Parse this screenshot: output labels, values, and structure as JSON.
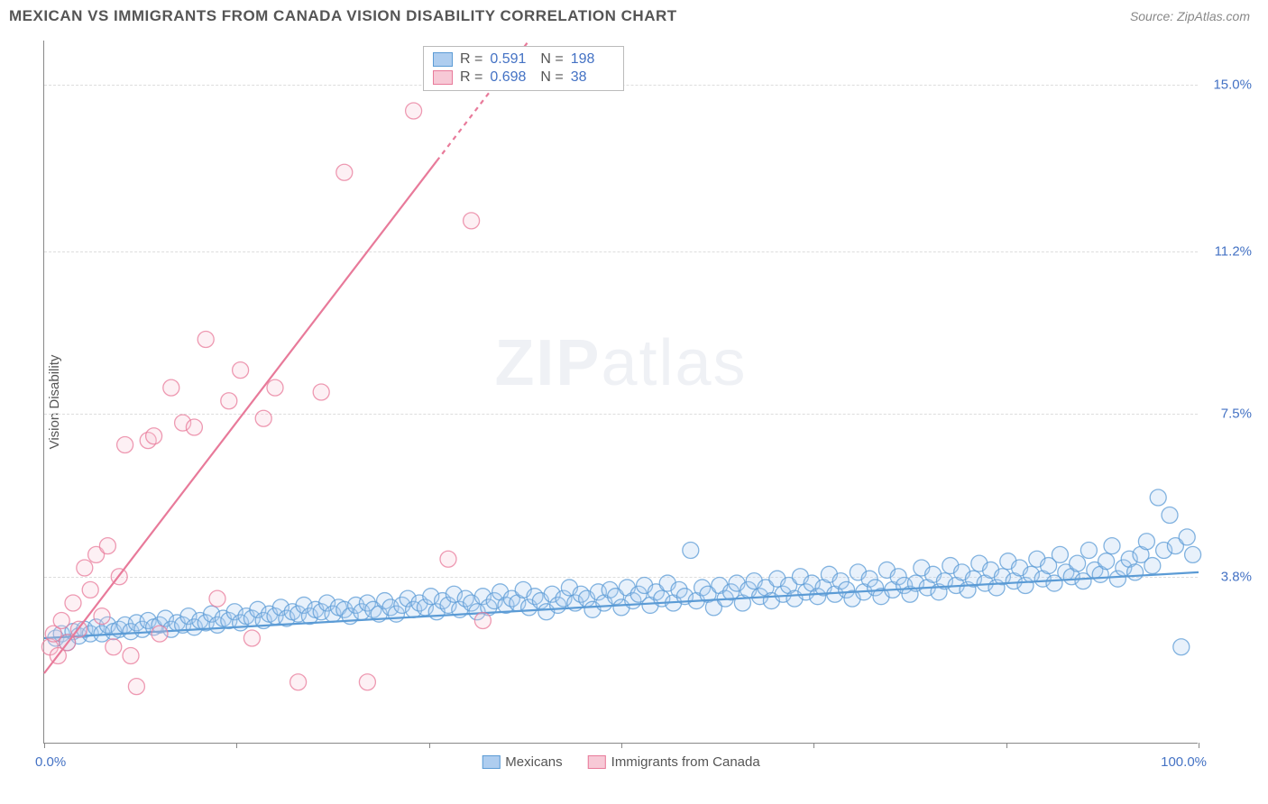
{
  "header": {
    "title": "MEXICAN VS IMMIGRANTS FROM CANADA VISION DISABILITY CORRELATION CHART",
    "source": "Source: ZipAtlas.com"
  },
  "chart": {
    "type": "scatter",
    "ylabel": "Vision Disability",
    "xlim": [
      0,
      100
    ],
    "ylim": [
      0,
      16
    ],
    "xtick_positions": [
      0,
      16.67,
      33.33,
      50,
      66.67,
      83.33,
      100
    ],
    "xaxis_label_left": "0.0%",
    "xaxis_label_right": "100.0%",
    "ytick_labels": [
      {
        "pos": 3.8,
        "text": "3.8%"
      },
      {
        "pos": 7.5,
        "text": "7.5%"
      },
      {
        "pos": 11.2,
        "text": "11.2%"
      },
      {
        "pos": 15.0,
        "text": "15.0%"
      }
    ],
    "grid_color": "#dddddd",
    "background_color": "#ffffff",
    "axis_color": "#888888",
    "label_color": "#4472c4",
    "label_fontsize": 15,
    "marker_radius": 9,
    "marker_fill_opacity": 0.28,
    "marker_stroke_opacity": 0.75,
    "marker_stroke_width": 1.3,
    "line_width": 2.2
  },
  "stats_box": {
    "rows": [
      {
        "series": 0,
        "r_label": "R =",
        "r": "0.591",
        "n_label": "N =",
        "n": "198"
      },
      {
        "series": 1,
        "r_label": "R =",
        "r": "0.698",
        "n_label": "N =",
        "n": "38"
      }
    ]
  },
  "legend": {
    "items": [
      {
        "series": 0,
        "label": "Mexicans"
      },
      {
        "series": 1,
        "label": "Immigrants from Canada"
      }
    ]
  },
  "series": [
    {
      "name": "Mexicans",
      "color": "#5b9bd5",
      "fill": "#aecdef",
      "trend": {
        "x1": 0,
        "y1": 2.4,
        "x2": 100,
        "y2": 3.9,
        "dash": false
      },
      "points": [
        [
          1,
          2.4
        ],
        [
          1.5,
          2.5
        ],
        [
          2,
          2.3
        ],
        [
          2.5,
          2.55
        ],
        [
          3,
          2.45
        ],
        [
          3.5,
          2.6
        ],
        [
          4,
          2.5
        ],
        [
          4.5,
          2.65
        ],
        [
          5,
          2.5
        ],
        [
          5.5,
          2.7
        ],
        [
          6,
          2.55
        ],
        [
          6.5,
          2.6
        ],
        [
          7,
          2.7
        ],
        [
          7.5,
          2.55
        ],
        [
          8,
          2.75
        ],
        [
          8.5,
          2.6
        ],
        [
          9,
          2.8
        ],
        [
          9.5,
          2.65
        ],
        [
          10,
          2.7
        ],
        [
          10.5,
          2.85
        ],
        [
          11,
          2.6
        ],
        [
          11.5,
          2.75
        ],
        [
          12,
          2.7
        ],
        [
          12.5,
          2.9
        ],
        [
          13,
          2.65
        ],
        [
          13.5,
          2.8
        ],
        [
          14,
          2.75
        ],
        [
          14.5,
          2.95
        ],
        [
          15,
          2.7
        ],
        [
          15.5,
          2.85
        ],
        [
          16,
          2.8
        ],
        [
          16.5,
          3.0
        ],
        [
          17,
          2.75
        ],
        [
          17.5,
          2.9
        ],
        [
          18,
          2.85
        ],
        [
          18.5,
          3.05
        ],
        [
          19,
          2.8
        ],
        [
          19.5,
          2.95
        ],
        [
          20,
          2.9
        ],
        [
          20.5,
          3.1
        ],
        [
          21,
          2.85
        ],
        [
          21.5,
          3.0
        ],
        [
          22,
          2.95
        ],
        [
          22.5,
          3.15
        ],
        [
          23,
          2.9
        ],
        [
          23.5,
          3.05
        ],
        [
          24,
          3.0
        ],
        [
          24.5,
          3.2
        ],
        [
          25,
          2.95
        ],
        [
          25.5,
          3.1
        ],
        [
          26,
          3.05
        ],
        [
          26.5,
          2.9
        ],
        [
          27,
          3.15
        ],
        [
          27.5,
          3.0
        ],
        [
          28,
          3.2
        ],
        [
          28.5,
          3.05
        ],
        [
          29,
          2.95
        ],
        [
          29.5,
          3.25
        ],
        [
          30,
          3.1
        ],
        [
          30.5,
          2.95
        ],
        [
          31,
          3.15
        ],
        [
          31.5,
          3.3
        ],
        [
          32,
          3.05
        ],
        [
          32.5,
          3.2
        ],
        [
          33,
          3.1
        ],
        [
          33.5,
          3.35
        ],
        [
          34,
          3.0
        ],
        [
          34.5,
          3.25
        ],
        [
          35,
          3.15
        ],
        [
          35.5,
          3.4
        ],
        [
          36,
          3.05
        ],
        [
          36.5,
          3.3
        ],
        [
          37,
          3.2
        ],
        [
          37.5,
          3.0
        ],
        [
          38,
          3.35
        ],
        [
          38.5,
          3.1
        ],
        [
          39,
          3.25
        ],
        [
          39.5,
          3.45
        ],
        [
          40,
          3.15
        ],
        [
          40.5,
          3.3
        ],
        [
          41,
          3.2
        ],
        [
          41.5,
          3.5
        ],
        [
          42,
          3.1
        ],
        [
          42.5,
          3.35
        ],
        [
          43,
          3.25
        ],
        [
          43.5,
          3.0
        ],
        [
          44,
          3.4
        ],
        [
          44.5,
          3.15
        ],
        [
          45,
          3.3
        ],
        [
          45.5,
          3.55
        ],
        [
          46,
          3.2
        ],
        [
          46.5,
          3.4
        ],
        [
          47,
          3.3
        ],
        [
          47.5,
          3.05
        ],
        [
          48,
          3.45
        ],
        [
          48.5,
          3.2
        ],
        [
          49,
          3.5
        ],
        [
          49.5,
          3.35
        ],
        [
          50,
          3.1
        ],
        [
          50.5,
          3.55
        ],
        [
          51,
          3.25
        ],
        [
          51.5,
          3.4
        ],
        [
          52,
          3.6
        ],
        [
          52.5,
          3.15
        ],
        [
          53,
          3.45
        ],
        [
          53.5,
          3.3
        ],
        [
          54,
          3.65
        ],
        [
          54.5,
          3.2
        ],
        [
          55,
          3.5
        ],
        [
          55.5,
          3.35
        ],
        [
          56,
          4.4
        ],
        [
          56.5,
          3.25
        ],
        [
          57,
          3.55
        ],
        [
          57.5,
          3.4
        ],
        [
          58,
          3.1
        ],
        [
          58.5,
          3.6
        ],
        [
          59,
          3.3
        ],
        [
          59.5,
          3.45
        ],
        [
          60,
          3.65
        ],
        [
          60.5,
          3.2
        ],
        [
          61,
          3.5
        ],
        [
          61.5,
          3.7
        ],
        [
          62,
          3.35
        ],
        [
          62.5,
          3.55
        ],
        [
          63,
          3.25
        ],
        [
          63.5,
          3.75
        ],
        [
          64,
          3.4
        ],
        [
          64.5,
          3.6
        ],
        [
          65,
          3.3
        ],
        [
          65.5,
          3.8
        ],
        [
          66,
          3.45
        ],
        [
          66.5,
          3.65
        ],
        [
          67,
          3.35
        ],
        [
          67.5,
          3.55
        ],
        [
          68,
          3.85
        ],
        [
          68.5,
          3.4
        ],
        [
          69,
          3.7
        ],
        [
          69.5,
          3.5
        ],
        [
          70,
          3.3
        ],
        [
          70.5,
          3.9
        ],
        [
          71,
          3.45
        ],
        [
          71.5,
          3.75
        ],
        [
          72,
          3.55
        ],
        [
          72.5,
          3.35
        ],
        [
          73,
          3.95
        ],
        [
          73.5,
          3.5
        ],
        [
          74,
          3.8
        ],
        [
          74.5,
          3.6
        ],
        [
          75,
          3.4
        ],
        [
          75.5,
          3.65
        ],
        [
          76,
          4.0
        ],
        [
          76.5,
          3.55
        ],
        [
          77,
          3.85
        ],
        [
          77.5,
          3.45
        ],
        [
          78,
          3.7
        ],
        [
          78.5,
          4.05
        ],
        [
          79,
          3.6
        ],
        [
          79.5,
          3.9
        ],
        [
          80,
          3.5
        ],
        [
          80.5,
          3.75
        ],
        [
          81,
          4.1
        ],
        [
          81.5,
          3.65
        ],
        [
          82,
          3.95
        ],
        [
          82.5,
          3.55
        ],
        [
          83,
          3.8
        ],
        [
          83.5,
          4.15
        ],
        [
          84,
          3.7
        ],
        [
          84.5,
          4.0
        ],
        [
          85,
          3.6
        ],
        [
          85.5,
          3.85
        ],
        [
          86,
          4.2
        ],
        [
          86.5,
          3.75
        ],
        [
          87,
          4.05
        ],
        [
          87.5,
          3.65
        ],
        [
          88,
          4.3
        ],
        [
          88.5,
          3.9
        ],
        [
          89,
          3.8
        ],
        [
          89.5,
          4.1
        ],
        [
          90,
          3.7
        ],
        [
          90.5,
          4.4
        ],
        [
          91,
          3.95
        ],
        [
          91.5,
          3.85
        ],
        [
          92,
          4.15
        ],
        [
          92.5,
          4.5
        ],
        [
          93,
          3.75
        ],
        [
          93.5,
          4.0
        ],
        [
          94,
          4.2
        ],
        [
          94.5,
          3.9
        ],
        [
          95,
          4.3
        ],
        [
          95.5,
          4.6
        ],
        [
          96,
          4.05
        ],
        [
          96.5,
          5.6
        ],
        [
          97,
          4.4
        ],
        [
          97.5,
          5.2
        ],
        [
          98,
          4.5
        ],
        [
          98.5,
          2.2
        ],
        [
          99,
          4.7
        ],
        [
          99.5,
          4.3
        ]
      ]
    },
    {
      "name": "Immigrants from Canada",
      "color": "#e87a9a",
      "fill": "#f7c9d6",
      "trend": {
        "x1": 0,
        "y1": 1.6,
        "x2": 42,
        "y2": 16.0,
        "dash_after": 34
      },
      "points": [
        [
          0.5,
          2.2
        ],
        [
          0.8,
          2.5
        ],
        [
          1.2,
          2.0
        ],
        [
          1.5,
          2.8
        ],
        [
          2,
          2.3
        ],
        [
          2.5,
          3.2
        ],
        [
          3,
          2.6
        ],
        [
          3.5,
          4.0
        ],
        [
          4,
          3.5
        ],
        [
          4.5,
          4.3
        ],
        [
          5,
          2.9
        ],
        [
          5.5,
          4.5
        ],
        [
          6,
          2.2
        ],
        [
          6.5,
          3.8
        ],
        [
          7,
          6.8
        ],
        [
          7.5,
          2.0
        ],
        [
          8,
          1.3
        ],
        [
          9,
          6.9
        ],
        [
          9.5,
          7.0
        ],
        [
          10,
          2.5
        ],
        [
          11,
          8.1
        ],
        [
          12,
          7.3
        ],
        [
          13,
          7.2
        ],
        [
          14,
          9.2
        ],
        [
          15,
          3.3
        ],
        [
          16,
          7.8
        ],
        [
          17,
          8.5
        ],
        [
          18,
          2.4
        ],
        [
          19,
          7.4
        ],
        [
          20,
          8.1
        ],
        [
          22,
          1.4
        ],
        [
          24,
          8.0
        ],
        [
          26,
          13.0
        ],
        [
          28,
          1.4
        ],
        [
          32,
          14.4
        ],
        [
          35,
          4.2
        ],
        [
          37,
          11.9
        ],
        [
          38,
          2.8
        ]
      ]
    }
  ],
  "watermark": {
    "pre": "ZIP",
    "post": "atlas"
  }
}
